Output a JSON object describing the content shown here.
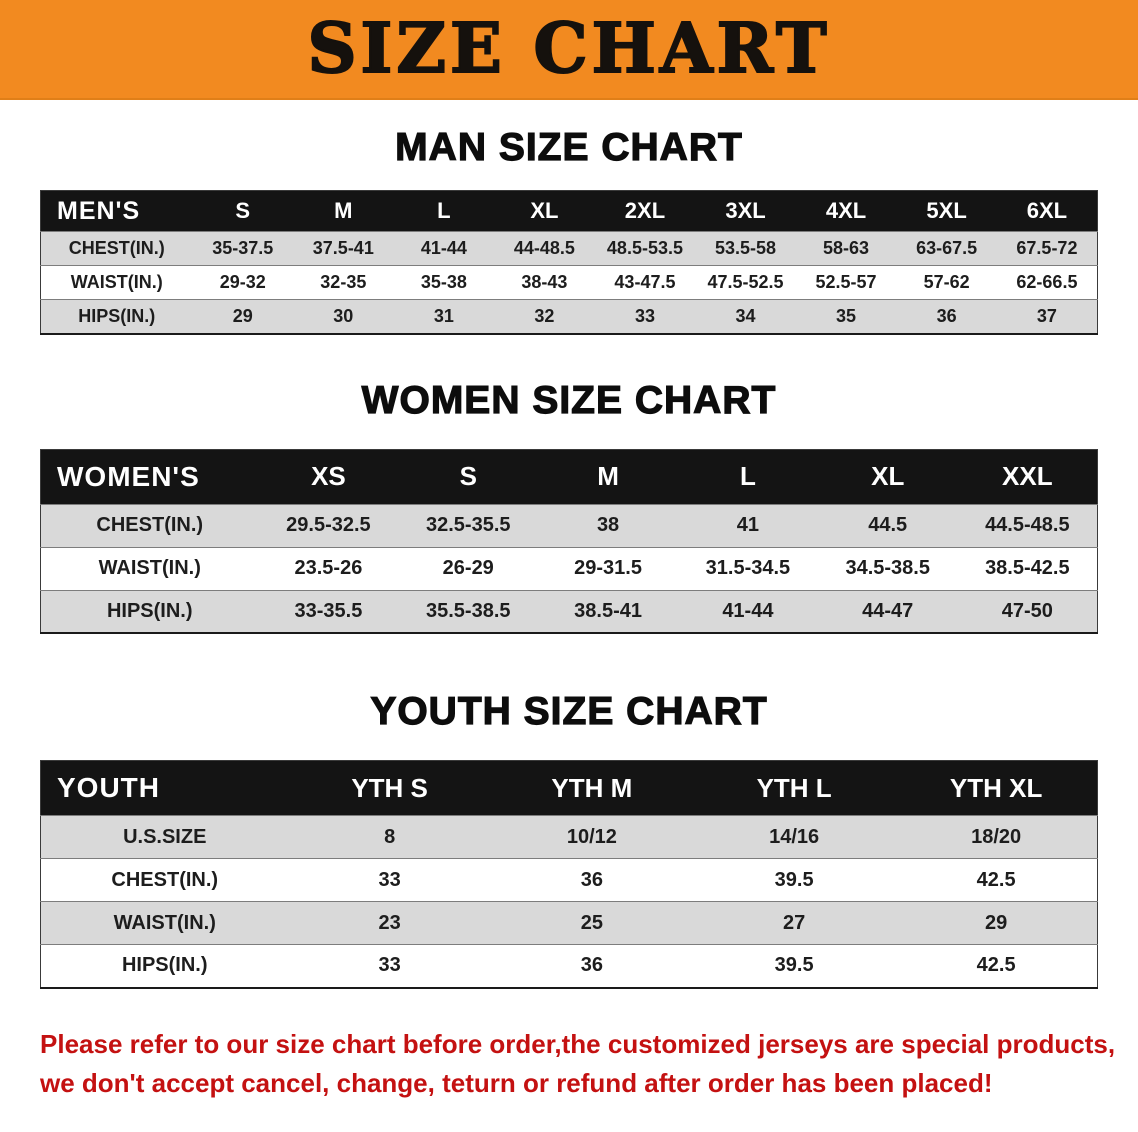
{
  "banner": {
    "title": "SIZE CHART"
  },
  "colors": {
    "banner_bg": "#f28a20",
    "header_bg": "#141414",
    "header_text": "#ffffff",
    "row_alt_bg": "#d9d9d9",
    "footer_text": "#c41111"
  },
  "chart_data": [
    {
      "type": "table",
      "title": "MAN SIZE CHART",
      "columns": [
        "MEN'S",
        "S",
        "M",
        "L",
        "XL",
        "2XL",
        "3XL",
        "4XL",
        "5XL",
        "6XL"
      ],
      "rows": [
        [
          "CHEST(IN.)",
          "35-37.5",
          "37.5-41",
          "41-44",
          "44-48.5",
          "48.5-53.5",
          "53.5-58",
          "58-63",
          "63-67.5",
          "67.5-72"
        ],
        [
          "WAIST(IN.)",
          "29-32",
          "32-35",
          "35-38",
          "38-43",
          "43-47.5",
          "47.5-52.5",
          "52.5-57",
          "57-62",
          "62-66.5"
        ],
        [
          "HIPS(IN.)",
          "29",
          "30",
          "31",
          "32",
          "33",
          "34",
          "35",
          "36",
          "37"
        ]
      ]
    },
    {
      "type": "table",
      "title": "WOMEN SIZE CHART",
      "columns": [
        "WOMEN'S",
        "XS",
        "S",
        "M",
        "L",
        "XL",
        "XXL"
      ],
      "rows": [
        [
          "CHEST(IN.)",
          "29.5-32.5",
          "32.5-35.5",
          "38",
          "41",
          "44.5",
          "44.5-48.5"
        ],
        [
          "WAIST(IN.)",
          "23.5-26",
          "26-29",
          "29-31.5",
          "31.5-34.5",
          "34.5-38.5",
          "38.5-42.5"
        ],
        [
          "HIPS(IN.)",
          "33-35.5",
          "35.5-38.5",
          "38.5-41",
          "41-44",
          "44-47",
          "47-50"
        ]
      ]
    },
    {
      "type": "table",
      "title": "YOUTH SIZE CHART",
      "columns": [
        "YOUTH",
        "YTH S",
        "YTH M",
        "YTH L",
        "YTH XL"
      ],
      "rows": [
        [
          "U.S.SIZE",
          "8",
          "10/12",
          "14/16",
          "18/20"
        ],
        [
          "CHEST(IN.)",
          "33",
          "36",
          "39.5",
          "42.5"
        ],
        [
          "WAIST(IN.)",
          "23",
          "25",
          "27",
          "29"
        ],
        [
          "HIPS(IN.)",
          "33",
          "36",
          "39.5",
          "42.5"
        ]
      ]
    }
  ],
  "footer": {
    "line1": "Please refer to our size chart before order,the customized jerseys are special products,",
    "line2": "we don't accept cancel, change, teturn or refund after order has been placed!"
  }
}
